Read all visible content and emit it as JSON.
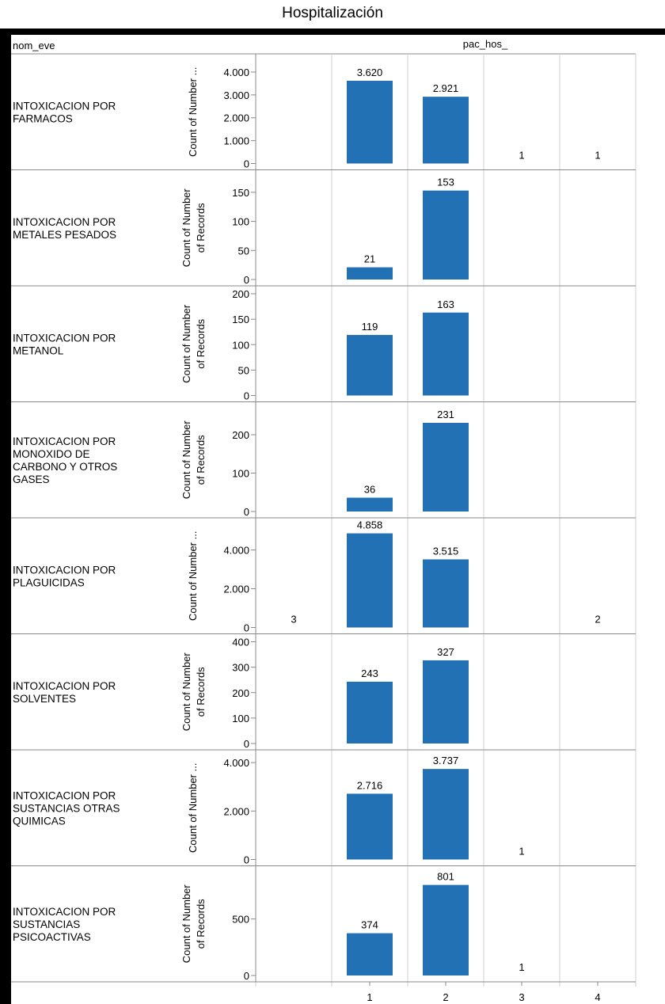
{
  "title": "Hospitalización",
  "chart_data": {
    "type": "bar",
    "row_header": "nom_eve",
    "column_header": "pac_hos_",
    "x_categories": [
      "1",
      "2",
      "3",
      "4"
    ],
    "bar_color": "#2371b5",
    "grid": "vertical lines between categories",
    "panels": [
      {
        "label": "INTOXICACION POR FARMACOS",
        "label_lines": [
          "INTOXICACION POR",
          "FARMACOS"
        ],
        "ylabel_lines": [
          "Count of Number ..."
        ],
        "ylim": [
          0,
          4450
        ],
        "yticks": [
          0,
          1000,
          2000,
          3000,
          4000
        ],
        "ytick_labels": [
          "0",
          "1.000",
          "2.000",
          "3.000",
          "4.000"
        ],
        "values": [
          3620,
          2921,
          1,
          1
        ],
        "value_labels": [
          "3.620",
          "2.921",
          "1",
          "1"
        ],
        "left_value": null
      },
      {
        "label": "INTOXICACION POR METALES PESADOS",
        "label_lines": [
          "INTOXICACION POR",
          "METALES PESADOS"
        ],
        "ylabel_lines": [
          "Count of Number",
          "of Records"
        ],
        "ylim": [
          0,
          175
        ],
        "yticks": [
          0,
          50,
          100,
          150
        ],
        "ytick_labels": [
          "0",
          "50",
          "100",
          "150"
        ],
        "values": [
          21,
          153,
          null,
          null
        ],
        "value_labels": [
          "21",
          "153",
          "",
          ""
        ],
        "left_value": null
      },
      {
        "label": "INTOXICACION POR METANOL",
        "label_lines": [
          "INTOXICACION POR",
          "METANOL"
        ],
        "ylabel_lines": [
          "Count of Number",
          "of Records"
        ],
        "ylim": [
          0,
          200
        ],
        "yticks": [
          0,
          50,
          100,
          150,
          200
        ],
        "ytick_labels": [
          "0",
          "50",
          "100",
          "150",
          "200"
        ],
        "values": [
          119,
          163,
          null,
          null
        ],
        "value_labels": [
          "119",
          "163",
          "",
          ""
        ],
        "left_value": null
      },
      {
        "label": "INTOXICACION POR MONOXIDO DE CARBONO Y OTROS GASES",
        "label_lines": [
          "INTOXICACION POR",
          "MONOXIDO DE",
          "CARBONO Y OTROS",
          "GASES"
        ],
        "ylabel_lines": [
          "Count of Number",
          "of Records"
        ],
        "ylim": [
          0,
          265
        ],
        "yticks": [
          0,
          100,
          200
        ],
        "ytick_labels": [
          "0",
          "100",
          "200"
        ],
        "values": [
          36,
          231,
          null,
          null
        ],
        "value_labels": [
          "36",
          "231",
          "",
          ""
        ],
        "left_value": null
      },
      {
        "label": "INTOXICACION POR PLAGUICIDAS",
        "label_lines": [
          "INTOXICACION POR",
          "PLAGUICIDAS"
        ],
        "ylabel_lines": [
          "Count of Number ..."
        ],
        "ylim": [
          0,
          5250
        ],
        "yticks": [
          0,
          2000,
          4000
        ],
        "ytick_labels": [
          "0",
          "2.000",
          "4.000"
        ],
        "values": [
          4858,
          3515,
          null,
          2
        ],
        "value_labels": [
          "4.858",
          "3.515",
          "",
          "2"
        ],
        "left_value": "3"
      },
      {
        "label": "INTOXICACION POR SOLVENTES",
        "label_lines": [
          "INTOXICACION POR",
          "SOLVENTES"
        ],
        "ylabel_lines": [
          "Count of Number",
          "of Records"
        ],
        "ylim": [
          0,
          400
        ],
        "yticks": [
          0,
          100,
          200,
          300,
          400
        ],
        "ytick_labels": [
          "0",
          "100",
          "200",
          "300",
          "400"
        ],
        "values": [
          243,
          327,
          null,
          null
        ],
        "value_labels": [
          "243",
          "327",
          "",
          ""
        ],
        "left_value": null
      },
      {
        "label": "INTOXICACION POR SUSTANCIAS OTRAS QUIMICAS",
        "label_lines": [
          "INTOXICACION POR",
          "SUSTANCIAS OTRAS",
          "QUIMICAS"
        ],
        "ylabel_lines": [
          "Count of Number ..."
        ],
        "ylim": [
          0,
          4200
        ],
        "yticks": [
          0,
          2000,
          4000
        ],
        "ytick_labels": [
          "0",
          "2.000",
          "4.000"
        ],
        "values": [
          2716,
          3737,
          1,
          null
        ],
        "value_labels": [
          "2.716",
          "3.737",
          "1",
          ""
        ],
        "left_value": null
      },
      {
        "label": "INTOXICACION POR SUSTANCIAS PSICOACTIVAS",
        "label_lines": [
          "INTOXICACION POR",
          "SUSTANCIAS",
          "PSICOACTIVAS"
        ],
        "ylabel_lines": [
          "Count of Number",
          "of Records"
        ],
        "ylim": [
          0,
          900
        ],
        "yticks": [
          0,
          500
        ],
        "ytick_labels": [
          "0",
          "500"
        ],
        "values": [
          374,
          801,
          1,
          null
        ],
        "value_labels": [
          "374",
          "801",
          "1",
          ""
        ],
        "left_value": null
      }
    ]
  }
}
